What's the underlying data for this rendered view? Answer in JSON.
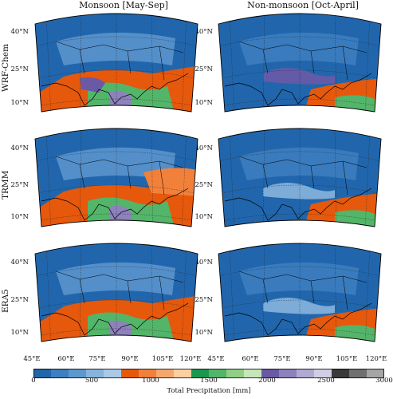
{
  "columns": [
    "Monsoon [May-Sep]",
    "Non-monsoon [Oct-April]"
  ],
  "rows": [
    "WRF-Chem",
    "TRMM",
    "ERA5"
  ],
  "lat_ticks": [
    "40°N",
    "25°N",
    "10°N"
  ],
  "lon_ticks": [
    "45°E",
    "60°E",
    "75°E",
    "90°E",
    "105°E",
    "120°E"
  ],
  "colorbar": {
    "label": "Total Precipitation [mm]",
    "ticks": [
      "0",
      "500",
      "1000",
      "1500",
      "2000",
      "2500",
      "3000"
    ],
    "range": [
      0,
      3000
    ],
    "step": 150,
    "colors": [
      "#2166ac",
      "#3d7fc0",
      "#5d97cf",
      "#86b4dc",
      "#a9c9e5",
      "#e6580c",
      "#f1813a",
      "#f6a86c",
      "#fbcf9f",
      "#1a9850",
      "#53b569",
      "#8fcf86",
      "#c5e6b8",
      "#6a5aa6",
      "#8e82bd",
      "#b1a9d2",
      "#d2cde6",
      "#3a3a3a",
      "#707070",
      "#a5a5a5"
    ]
  },
  "map_data": {
    "panels": [
      {
        "row": "WRF-Chem",
        "column": "Monsoon [May-Sep]"
      },
      {
        "row": "WRF-Chem",
        "column": "Non-monsoon [Oct-April]"
      },
      {
        "row": "TRMM",
        "column": "Monsoon [May-Sep]"
      },
      {
        "row": "TRMM",
        "column": "Non-monsoon [Oct-April]"
      },
      {
        "row": "ERA5",
        "column": "Monsoon [May-Sep]"
      },
      {
        "row": "ERA5",
        "column": "Non-monsoon [Oct-April]"
      }
    ],
    "projection": "conic"
  }
}
